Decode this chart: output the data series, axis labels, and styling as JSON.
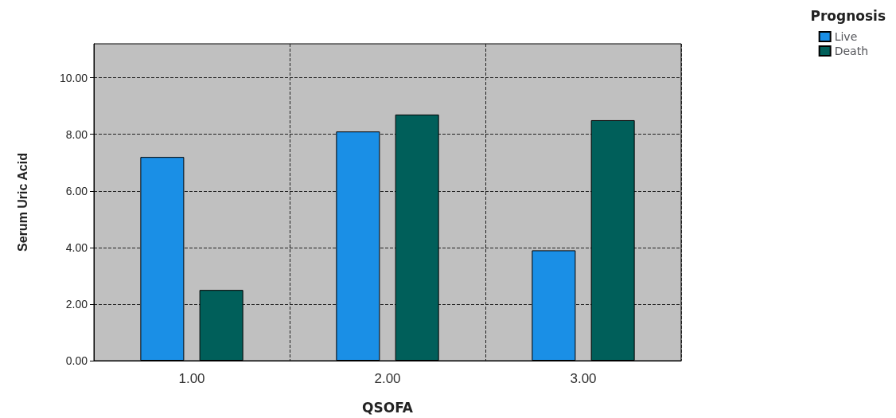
{
  "chart_data": {
    "type": "bar",
    "xlabel": "QSOFA",
    "ylabel": "Serum Uric Acid",
    "legend_title": "Prognosis",
    "categories": [
      "1.00",
      "2.00",
      "3.00"
    ],
    "series": [
      {
        "name": "Live",
        "color": "#1a8fe6",
        "values": [
          7.2,
          8.1,
          3.9
        ]
      },
      {
        "name": "Death",
        "color": "#005f5a",
        "values": [
          2.5,
          8.7,
          8.5
        ]
      }
    ],
    "ylim": [
      0,
      11.2
    ],
    "yticks": [
      {
        "value": 0,
        "label": "0.00"
      },
      {
        "value": 2,
        "label": "2.00"
      },
      {
        "value": 4,
        "label": "4.00"
      },
      {
        "value": 6,
        "label": "6.00"
      },
      {
        "value": 8,
        "label": "8.00"
      },
      {
        "value": 10,
        "label": "10.00"
      }
    ],
    "grid": true,
    "legend": "top right"
  }
}
